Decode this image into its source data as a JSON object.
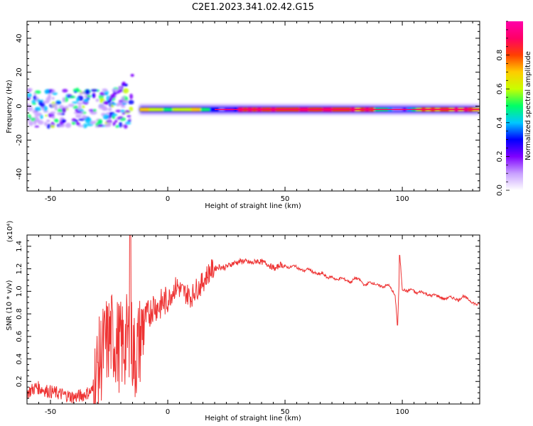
{
  "title": "C2E1.2023.341.02.42.G15",
  "chart_data": [
    {
      "type": "heatmap",
      "xlabel": "Height of straight line (km)",
      "ylabel": "Frequency (Hz)",
      "xlim": [
        -60,
        133
      ],
      "ylim": [
        -50,
        50
      ],
      "x_ticks": [
        -50,
        0,
        50,
        100
      ],
      "y_ticks": [
        -40,
        -20,
        0,
        20,
        40
      ],
      "colorbar": {
        "label": "Normalized spectral amplitude",
        "range": [
          0,
          1
        ],
        "ticks": [
          0.0,
          0.2,
          0.4,
          0.6,
          0.8
        ],
        "colormap": [
          "#ffffff",
          "#c8a0ff",
          "#7f00ff",
          "#0000ff",
          "#00c8ff",
          "#00ff66",
          "#c8ff00",
          "#ffcc00",
          "#ff4000",
          "#ff0066",
          "#ff00aa"
        ]
      },
      "ridge": {
        "frequency_hz": -2,
        "x_start": -12,
        "x_end": 133,
        "peak_amplitude": 0.9
      },
      "low_altitude_scatter": {
        "x_range": [
          -60,
          -15
        ],
        "frequency_range": [
          -12,
          10
        ],
        "rising_streak": {
          "x": [
            -28,
            -15
          ],
          "frequency_hz": [
            0,
            17
          ]
        }
      }
    },
    {
      "type": "line",
      "xlabel": "Height of straight line (km)",
      "ylabel": "SNR (10 * v/v)",
      "y_multiplier": "(x10⁴)",
      "xlim": [
        -60,
        133
      ],
      "ylim": [
        0,
        1.5
      ],
      "x_ticks": [
        -50,
        0,
        50,
        100
      ],
      "y_ticks": [
        0.2,
        0.4,
        0.6,
        0.8,
        1.0,
        1.2,
        1.4
      ],
      "series": [
        {
          "color": "#ee3333",
          "x": [
            -60,
            -56,
            -52,
            -48,
            -44,
            -40,
            -36,
            -32,
            -30,
            -28,
            -26,
            -24,
            -22,
            -20,
            -18,
            -16,
            -14,
            -12,
            -10,
            -8,
            -6,
            -4,
            -2,
            0,
            2,
            4,
            6,
            8,
            10,
            12,
            14,
            16,
            18,
            20,
            22,
            24,
            26,
            28,
            30,
            32,
            34,
            36,
            38,
            40,
            42,
            44,
            46,
            48,
            50,
            52,
            54,
            56,
            58,
            60,
            62,
            64,
            66,
            68,
            70,
            72,
            74,
            76,
            78,
            80,
            82,
            84,
            86,
            88,
            90,
            92,
            94,
            96,
            97,
            98,
            99,
            100,
            102,
            104,
            106,
            108,
            110,
            112,
            114,
            116,
            118,
            120,
            122,
            124,
            126,
            128,
            130,
            132,
            133
          ],
          "y": [
            0.1,
            0.15,
            0.12,
            0.1,
            0.08,
            0.06,
            0.08,
            0.12,
            0.3,
            0.45,
            0.55,
            0.6,
            0.55,
            0.5,
            0.55,
            0.6,
            0.4,
            0.55,
            0.75,
            0.8,
            0.88,
            0.86,
            0.9,
            0.92,
            1.0,
            1.05,
            1.0,
            0.98,
            0.95,
            1.02,
            1.05,
            1.12,
            1.18,
            1.2,
            1.22,
            1.21,
            1.23,
            1.25,
            1.26,
            1.27,
            1.26,
            1.25,
            1.27,
            1.26,
            1.25,
            1.22,
            1.2,
            1.24,
            1.22,
            1.21,
            1.23,
            1.2,
            1.18,
            1.2,
            1.17,
            1.15,
            1.16,
            1.12,
            1.13,
            1.1,
            1.12,
            1.1,
            1.08,
            1.12,
            1.1,
            1.05,
            1.08,
            1.07,
            1.05,
            1.04,
            1.06,
            1.0,
            0.95,
            0.7,
            1.3,
            1.02,
            1.0,
            1.02,
            0.98,
            1.0,
            0.98,
            0.96,
            0.97,
            0.95,
            0.93,
            0.95,
            0.94,
            0.92,
            0.96,
            0.93,
            0.9,
            0.88,
            0.9
          ]
        }
      ]
    }
  ]
}
